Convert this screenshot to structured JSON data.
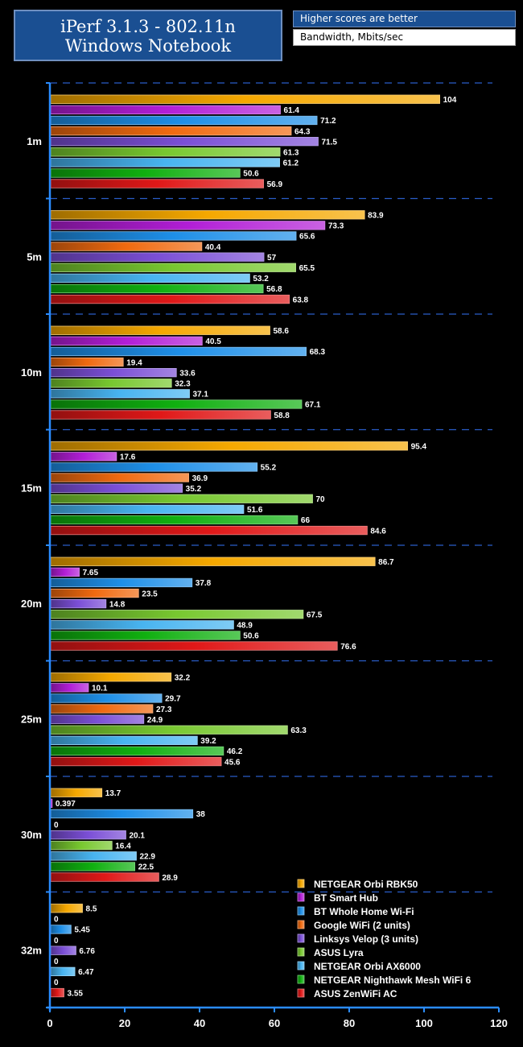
{
  "header": {
    "title_line1": "iPerf 3.1.3 - 802.11n",
    "title_line2": "Windows Notebook",
    "note": "Higher scores are better",
    "units": "Bandwidth, Mbits/sec"
  },
  "colors": {
    "NETGEAR Orbi RBK50": "#f5a800",
    "BT Smart Hub": "#b21ed6",
    "BT Whole Home Wi-Fi": "#1e8fe8",
    "Google WiFi (2 units)": "#f06a10",
    "Linksys Velop (3 units)": "#7b4fd6",
    "ASUS Lyra": "#78c830",
    "NETGEAR Orbi AX6000": "#48b4f0",
    "NETGEAR Nighthawk Mesh WiFi 6": "#10b010",
    "ASUS ZenWiFi AC": "#e01818"
  },
  "chart_data": {
    "type": "bar",
    "orientation": "horizontal",
    "title": "iPerf 3.1.3 - 802.11n Windows Notebook",
    "subtitle": "Higher scores are better",
    "xlabel": "Bandwidth, Mbits/sec",
    "xlim": [
      0,
      120
    ],
    "xticks": [
      0,
      20,
      40,
      60,
      80,
      100,
      120
    ],
    "legend_position": "bottom-right",
    "categories": [
      "1m",
      "5m",
      "10m",
      "15m",
      "20m",
      "25m",
      "30m",
      "32m"
    ],
    "series": [
      {
        "name": "NETGEAR Orbi RBK50",
        "values": [
          104,
          83.9,
          58.6,
          95.4,
          86.7,
          32.2,
          13.7,
          8.5
        ],
        "labels": [
          "104",
          "83.9",
          "58.6",
          "95.4",
          "86.7",
          "32.2",
          "13.7",
          "8.5"
        ]
      },
      {
        "name": "BT Smart Hub",
        "values": [
          61.4,
          73.3,
          40.5,
          17.6,
          7.65,
          10.1,
          0.397,
          0
        ],
        "labels": [
          "61.4",
          "73.3",
          "40.5",
          "17.6",
          "7.65",
          "10.1",
          "0.397",
          "0"
        ]
      },
      {
        "name": "BT Whole Home Wi-Fi",
        "values": [
          71.2,
          65.6,
          68.3,
          55.2,
          37.8,
          29.7,
          38,
          5.45
        ],
        "labels": [
          "71.2",
          "65.6",
          "68.3",
          "55.2",
          "37.8",
          "29.7",
          "38",
          "5.45"
        ]
      },
      {
        "name": "Google WiFi (2 units)",
        "values": [
          64.3,
          40.4,
          19.4,
          36.9,
          23.5,
          27.3,
          0,
          0
        ],
        "labels": [
          "64.3",
          "40.4",
          "19.4",
          "36.9",
          "23.5",
          "27.3",
          "0",
          "0"
        ]
      },
      {
        "name": "Linksys Velop (3 units)",
        "values": [
          71.5,
          57,
          33.6,
          35.2,
          14.8,
          24.9,
          20.1,
          6.76
        ],
        "labels": [
          "71.5",
          "57",
          "33.6",
          "35.2",
          "14.8",
          "24.9",
          "20.1",
          "6.76"
        ]
      },
      {
        "name": "ASUS Lyra",
        "values": [
          61.3,
          65.5,
          32.3,
          70,
          67.5,
          63.3,
          16.4,
          0
        ],
        "labels": [
          "61.3",
          "65.5",
          "32.3",
          "70",
          "67.5",
          "63.3",
          "16.4",
          "0"
        ]
      },
      {
        "name": "NETGEAR Orbi AX6000",
        "values": [
          61.2,
          53.2,
          37.1,
          51.6,
          48.9,
          39.2,
          22.9,
          6.47
        ],
        "labels": [
          "61.2",
          "53.2",
          "37.1",
          "51.6",
          "48.9",
          "39.2",
          "22.9",
          "6.47"
        ]
      },
      {
        "name": "NETGEAR Nighthawk Mesh WiFi 6",
        "values": [
          50.6,
          56.8,
          67.1,
          66,
          50.6,
          46.2,
          22.5,
          0
        ],
        "labels": [
          "50.6",
          "56.8",
          "67.1",
          "66",
          "50.6",
          "46.2",
          "22.5",
          "0"
        ]
      },
      {
        "name": "ASUS ZenWiFi AC",
        "values": [
          56.9,
          63.8,
          58.8,
          84.6,
          76.6,
          45.6,
          28.9,
          3.55
        ],
        "labels": [
          "56.9",
          "63.8",
          "58.8",
          "84.6",
          "76.6",
          "45.6",
          "28.9",
          "3.55"
        ]
      }
    ]
  }
}
